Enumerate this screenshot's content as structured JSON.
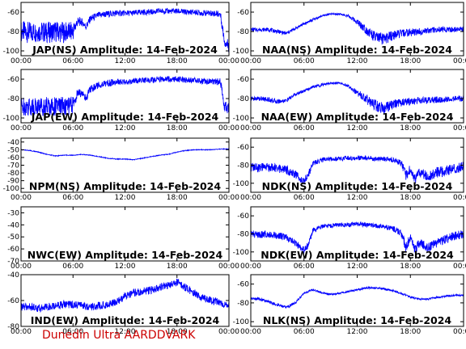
{
  "footer_text": "Dunedin Ultra AARDDVARK",
  "series_color": "#0000ff",
  "chart_data": [
    {
      "type": "line",
      "title": "JAP(NS) Amplitude: 14-Feb-2024",
      "x_ticks": [
        "00:00",
        "06:00",
        "12:00",
        "18:00",
        "00:00"
      ],
      "y_ticks": [
        "-60",
        "-80",
        "-100"
      ],
      "ylim": [
        -105,
        -50
      ],
      "xlim_hours": [
        0,
        24
      ],
      "series": [
        {
          "x_hours": [
            0,
            1,
            2,
            3,
            4,
            5,
            6,
            6.5,
            7,
            7.5,
            8,
            9,
            10,
            11,
            12,
            13,
            14,
            15,
            16,
            17,
            18,
            19,
            20,
            21,
            22,
            23,
            23.5,
            24
          ],
          "y": [
            -80,
            -81,
            -80,
            -81,
            -80,
            -81,
            -80,
            -70,
            -70,
            -75,
            -67,
            -63,
            -62,
            -61,
            -61,
            -61,
            -60,
            -60,
            -59,
            -59,
            -59,
            -60,
            -60,
            -61,
            -61,
            -62,
            -90,
            -95
          ],
          "spread": [
            22,
            22,
            22,
            22,
            22,
            22,
            20,
            10,
            8,
            8,
            8,
            7,
            7,
            7,
            6,
            6,
            6,
            6,
            6,
            6,
            6,
            6,
            6,
            6,
            6,
            8,
            12,
            14
          ]
        }
      ]
    },
    {
      "type": "line",
      "title": "NAA(NS) Amplitude: 14-Feb-2024",
      "x_ticks": [
        "00:00",
        "06:00",
        "12:00",
        "18:00",
        "00:00"
      ],
      "y_ticks": [
        "-60",
        "-80",
        "-100"
      ],
      "ylim": [
        -105,
        -50
      ],
      "xlim_hours": [
        0,
        24
      ],
      "series": [
        {
          "x_hours": [
            0,
            1,
            2,
            3,
            4,
            5,
            6,
            7,
            8,
            9,
            10,
            11,
            12,
            13,
            14,
            15,
            16,
            17,
            18,
            19,
            20,
            21,
            22,
            23,
            24
          ],
          "y": [
            -78,
            -78,
            -78,
            -80,
            -82,
            -77,
            -72,
            -68,
            -64,
            -62,
            -62,
            -64,
            -70,
            -78,
            -86,
            -88,
            -84,
            -82,
            -81,
            -80,
            -79,
            -78,
            -78,
            -78,
            -77
          ],
          "spread": [
            4,
            4,
            4,
            4,
            4,
            3,
            3,
            3,
            2,
            2,
            2,
            3,
            6,
            10,
            12,
            12,
            10,
            8,
            8,
            8,
            6,
            6,
            6,
            5,
            5
          ]
        }
      ]
    },
    {
      "type": "line",
      "title": "JAP(EW) Amplitude: 14-Feb-2024",
      "x_ticks": [
        "00:00",
        "06:00",
        "12:00",
        "18:00",
        "00:00"
      ],
      "y_ticks": [
        "-60",
        "-80",
        "-100"
      ],
      "ylim": [
        -105,
        -50
      ],
      "xlim_hours": [
        0,
        24
      ],
      "series": [
        {
          "x_hours": [
            0,
            1,
            2,
            3,
            4,
            5,
            6,
            6.5,
            7,
            7.5,
            8,
            9,
            10,
            11,
            12,
            13,
            14,
            15,
            16,
            17,
            18,
            19,
            20,
            21,
            22,
            23,
            23.5,
            24
          ],
          "y": [
            -88,
            -88,
            -88,
            -88,
            -88,
            -88,
            -87,
            -75,
            -74,
            -80,
            -70,
            -66,
            -64,
            -63,
            -63,
            -62,
            -61,
            -61,
            -60,
            -60,
            -60,
            -61,
            -61,
            -62,
            -62,
            -63,
            -88,
            -90
          ],
          "spread": [
            20,
            20,
            20,
            20,
            20,
            20,
            18,
            10,
            8,
            8,
            8,
            7,
            7,
            7,
            6,
            6,
            6,
            6,
            6,
            6,
            6,
            6,
            6,
            6,
            6,
            8,
            12,
            14
          ]
        }
      ]
    },
    {
      "type": "line",
      "title": "NAA(EW) Amplitude: 14-Feb-2024",
      "x_ticks": [
        "00:00",
        "06:00",
        "12:00",
        "18:00",
        "00:00"
      ],
      "y_ticks": [
        "-60",
        "-80",
        "-100"
      ],
      "ylim": [
        -105,
        -50
      ],
      "xlim_hours": [
        0,
        24
      ],
      "series": [
        {
          "x_hours": [
            0,
            1,
            2,
            3,
            4,
            5,
            6,
            7,
            8,
            9,
            10,
            11,
            12,
            13,
            14,
            15,
            16,
            17,
            18,
            19,
            20,
            21,
            22,
            23,
            24
          ],
          "y": [
            -80,
            -80,
            -81,
            -83,
            -82,
            -76,
            -72,
            -68,
            -66,
            -64,
            -64,
            -67,
            -74,
            -80,
            -87,
            -90,
            -86,
            -84,
            -83,
            -82,
            -82,
            -81,
            -81,
            -80,
            -80
          ],
          "spread": [
            5,
            5,
            5,
            5,
            4,
            4,
            3,
            3,
            3,
            2,
            2,
            3,
            6,
            10,
            12,
            12,
            10,
            8,
            8,
            8,
            7,
            7,
            6,
            6,
            6
          ]
        }
      ]
    },
    {
      "type": "line",
      "title": "NPM(NS) Amplitude: 14-Feb-2024",
      "x_ticks": [
        "00:00",
        "06:00",
        "12:00",
        "18:00",
        "00:00"
      ],
      "y_ticks": [
        "-40",
        "-50",
        "-60",
        "-70",
        "-80",
        "-90",
        "-100"
      ],
      "ylim": [
        -105,
        -35
      ],
      "xlim_hours": [
        0,
        24
      ],
      "series": [
        {
          "x_hours": [
            0,
            1,
            2,
            3,
            4,
            5,
            6,
            7,
            8,
            9,
            10,
            11,
            12,
            13,
            14,
            15,
            16,
            17,
            18,
            19,
            20,
            21,
            22,
            23,
            24
          ],
          "y": [
            -50,
            -51,
            -53,
            -56,
            -58,
            -57,
            -57,
            -56,
            -57,
            -59,
            -61,
            -62,
            -62,
            -63,
            -61,
            -59,
            -57,
            -56,
            -53,
            -51,
            -50,
            -50,
            -50,
            -49,
            -49
          ],
          "spread": [
            1,
            1,
            1,
            1,
            1,
            1,
            1,
            1,
            1,
            1,
            1,
            1,
            1,
            1,
            1,
            1,
            1,
            1,
            1,
            1,
            1,
            1,
            1,
            1,
            1
          ]
        }
      ]
    },
    {
      "type": "line",
      "title": "NDK(NS) Amplitude: 14-Feb-2024",
      "x_ticks": [
        "00:00",
        "06:00",
        "12:00",
        "18:00",
        "00:00"
      ],
      "y_ticks": [
        "-60",
        "-80",
        "-100"
      ],
      "ylim": [
        -110,
        -50
      ],
      "xlim_hours": [
        0,
        24
      ],
      "series": [
        {
          "x_hours": [
            0,
            1,
            2,
            3,
            4,
            5,
            6,
            6.5,
            7,
            8,
            9,
            10,
            11,
            12,
            13,
            14,
            15,
            16,
            17,
            17.5,
            18,
            18.5,
            19,
            20,
            21,
            22,
            23,
            24
          ],
          "y": [
            -82,
            -83,
            -82,
            -84,
            -85,
            -90,
            -98,
            -90,
            -78,
            -74,
            -73,
            -73,
            -72,
            -72,
            -72,
            -73,
            -73,
            -74,
            -78,
            -92,
            -84,
            -96,
            -88,
            -92,
            -88,
            -86,
            -84,
            -82
          ],
          "spread": [
            10,
            10,
            10,
            10,
            10,
            10,
            8,
            8,
            6,
            5,
            5,
            5,
            5,
            5,
            5,
            5,
            5,
            6,
            8,
            12,
            10,
            12,
            10,
            12,
            12,
            12,
            12,
            12
          ]
        }
      ]
    },
    {
      "type": "line",
      "title": "NWC(EW) Amplitude: 14-Feb-2024",
      "x_ticks": [
        "00:00",
        "06:00",
        "12:00",
        "18:00",
        "00:00"
      ],
      "y_ticks": [
        "-30",
        "-40",
        "-50",
        "-60",
        "-70"
      ],
      "ylim": [
        -70,
        -25
      ],
      "xlim_hours": [
        0,
        24
      ],
      "series": []
    },
    {
      "type": "line",
      "title": "NDK(EW) Amplitude: 14-Feb-2024",
      "x_ticks": [
        "00:00",
        "06:00",
        "12:00",
        "18:00",
        "00:00"
      ],
      "y_ticks": [
        "-60",
        "-80",
        "-100"
      ],
      "ylim": [
        -110,
        -50
      ],
      "xlim_hours": [
        0,
        24
      ],
      "series": [
        {
          "x_hours": [
            0,
            1,
            2,
            3,
            4,
            5,
            6,
            6.5,
            7,
            8,
            9,
            10,
            11,
            12,
            13,
            14,
            15,
            16,
            17,
            17.5,
            18,
            18.5,
            19,
            20,
            21,
            22,
            23,
            24
          ],
          "y": [
            -80,
            -81,
            -80,
            -82,
            -84,
            -90,
            -98,
            -92,
            -76,
            -72,
            -71,
            -70,
            -70,
            -69,
            -70,
            -71,
            -72,
            -74,
            -80,
            -95,
            -84,
            -98,
            -90,
            -95,
            -90,
            -86,
            -82,
            -80
          ],
          "spread": [
            8,
            8,
            8,
            8,
            8,
            8,
            8,
            8,
            6,
            5,
            5,
            5,
            5,
            5,
            5,
            5,
            5,
            6,
            8,
            12,
            10,
            12,
            10,
            10,
            10,
            10,
            10,
            10
          ]
        }
      ]
    },
    {
      "type": "line",
      "title": "IND(EW) Amplitude: 14-Feb-2024",
      "x_ticks": [
        "00:00",
        "06:00",
        "12:00",
        "18:00",
        "00:00"
      ],
      "y_ticks": [
        "-40",
        "-60",
        "-80"
      ],
      "ylim": [
        -80,
        -40
      ],
      "xlim_hours": [
        0,
        24
      ],
      "series": [
        {
          "x_hours": [
            0,
            1,
            2,
            3,
            4,
            5,
            6,
            7,
            8,
            9,
            10,
            11,
            12,
            13,
            14,
            15,
            16,
            17,
            18,
            19,
            20,
            21,
            22,
            23,
            24
          ],
          "y": [
            -65,
            -65,
            -66,
            -65,
            -64,
            -63,
            -63,
            -64,
            -65,
            -64,
            -63,
            -61,
            -57,
            -54,
            -53,
            -52,
            -50,
            -48,
            -46,
            -50,
            -54,
            -58,
            -60,
            -62,
            -63
          ],
          "spread": [
            6,
            6,
            6,
            6,
            6,
            6,
            6,
            6,
            6,
            6,
            6,
            6,
            6,
            6,
            6,
            6,
            6,
            6,
            6,
            6,
            6,
            6,
            6,
            6,
            6
          ]
        }
      ]
    },
    {
      "type": "line",
      "title": "NLK(NS) Amplitude: 14-Feb-2024",
      "x_ticks": [
        "00:00",
        "06:00",
        "12:00",
        "18:00",
        "00:00"
      ],
      "y_ticks": [
        "-60",
        "-80",
        "-100"
      ],
      "ylim": [
        -105,
        -50
      ],
      "xlim_hours": [
        0,
        24
      ],
      "series": [
        {
          "x_hours": [
            0,
            1,
            2,
            3,
            4,
            5,
            6,
            7,
            8,
            9,
            10,
            11,
            12,
            13,
            14,
            15,
            16,
            17,
            18,
            19,
            20,
            21,
            22,
            23,
            24
          ],
          "y": [
            -75,
            -76,
            -79,
            -82,
            -85,
            -80,
            -70,
            -66,
            -69,
            -71,
            -70,
            -68,
            -66,
            -64,
            -64,
            -65,
            -67,
            -70,
            -74,
            -76,
            -76,
            -74,
            -73,
            -72,
            -72
          ],
          "spread": [
            3,
            3,
            3,
            3,
            3,
            3,
            2,
            2,
            2,
            2,
            2,
            2,
            2,
            2,
            2,
            2,
            2,
            2,
            2,
            2,
            2,
            2,
            2,
            2,
            2
          ]
        }
      ]
    }
  ]
}
